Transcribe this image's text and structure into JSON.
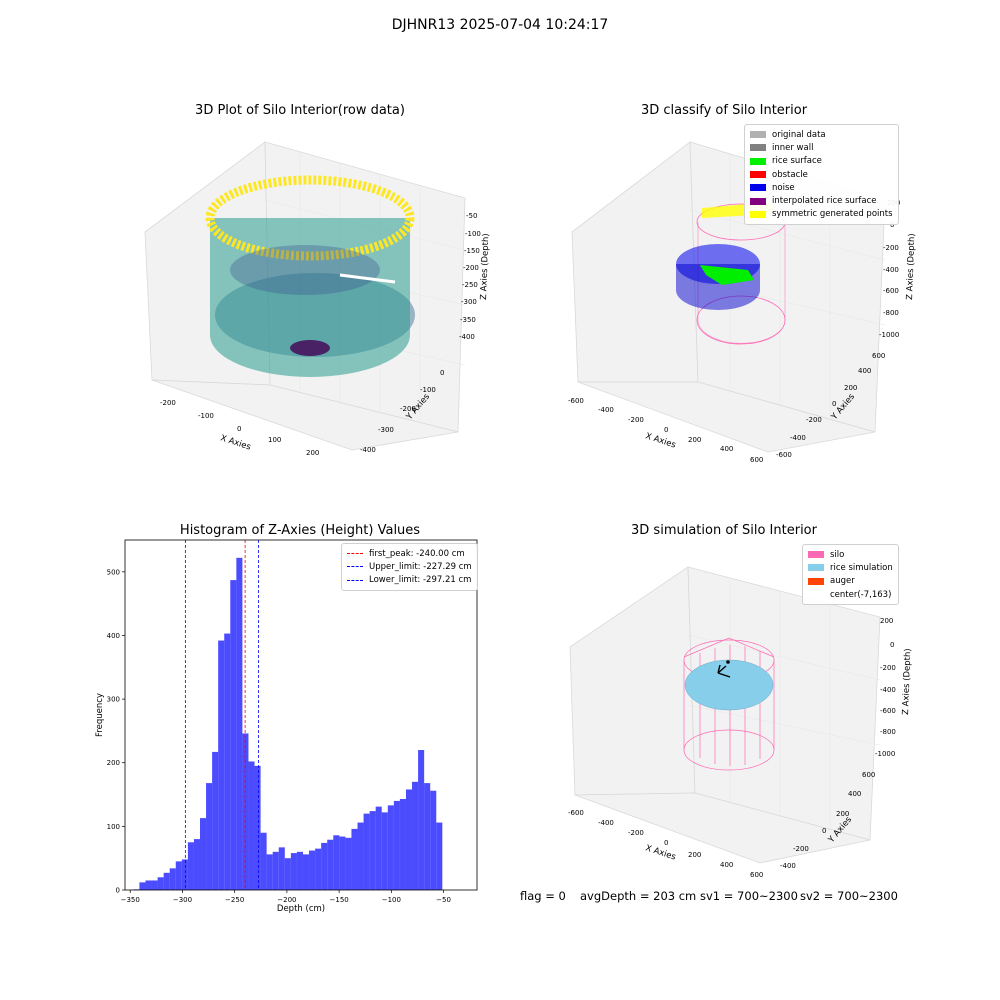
{
  "suptitle": "DJHNR13 2025-07-04 10:24:17",
  "panels": {
    "raw": {
      "title": "3D Plot of Silo Interior(row data)",
      "xlabel": "X Axies",
      "ylabel": "Y Axies",
      "zlabel": "Z Axies (Depth)",
      "xticks": [
        "-200",
        "-100",
        "0",
        "100",
        "200"
      ],
      "yticks": [
        "0",
        "-100",
        "-200",
        "-300",
        "-400"
      ],
      "zticks": [
        "-50",
        "-100",
        "-150",
        "-200",
        "-250",
        "-300",
        "-350",
        "-400"
      ]
    },
    "classify": {
      "title": "3D classify of Silo Interior",
      "xlabel": "X Axies",
      "ylabel": "Y Axies",
      "zlabel": "Z Axies (Depth)",
      "xticks": [
        "-600",
        "-400",
        "-200",
        "0",
        "200",
        "400",
        "600"
      ],
      "yticks": [
        "600",
        "400",
        "200",
        "0",
        "-200",
        "-400",
        "-600"
      ],
      "zticks": [
        "200",
        "0",
        "-200",
        "-400",
        "-600",
        "-800",
        "-1000"
      ],
      "legend": [
        {
          "label": "original data",
          "color": "#b0b0b0"
        },
        {
          "label": "inner wall",
          "color": "#808080"
        },
        {
          "label": "rice surface",
          "color": "#00ee00"
        },
        {
          "label": "obstacle",
          "color": "#ff0000"
        },
        {
          "label": "noise",
          "color": "#0000ee"
        },
        {
          "label": "interpolated rice surface",
          "color": "#800080"
        },
        {
          "label": "symmetric generated points",
          "color": "#ffff00"
        }
      ]
    },
    "simulation": {
      "title": "3D simulation of Silo Interior",
      "xlabel": "X Axies",
      "ylabel": "Y Axies",
      "zlabel": "Z Axies (Depth)",
      "xticks": [
        "-600",
        "-400",
        "-200",
        "0",
        "200",
        "400",
        "600"
      ],
      "yticks": [
        "600",
        "400",
        "200",
        "0",
        "-200",
        "-400"
      ],
      "zticks": [
        "200",
        "0",
        "-200",
        "-400",
        "-600",
        "-800",
        "-1000"
      ],
      "legend": [
        {
          "label": "silo",
          "color": "#ff69b4"
        },
        {
          "label": "rice simulation",
          "color": "#87ceeb"
        },
        {
          "label": "auger",
          "color": "#ff4500"
        },
        {
          "label": "center(-7,163)",
          "color": ""
        }
      ]
    }
  },
  "status": {
    "flag": "flag = 0",
    "avg_depth": "avgDepth = 203 cm",
    "sv1": "sv1 = 700~2300",
    "sv2": "sv2 = 700~2300"
  },
  "chart_data": {
    "type": "bar",
    "title": "Histogram of Z-Axies (Height) Values",
    "xlabel": "Depth (cm)",
    "ylabel": "Frequency",
    "xlim": [
      -355,
      -18
    ],
    "ylim": [
      0,
      550
    ],
    "xticks": [
      -350,
      -300,
      -250,
      -200,
      -150,
      -100,
      -50
    ],
    "yticks": [
      0,
      100,
      200,
      300,
      400,
      500
    ],
    "bin_start": -347,
    "bin_width": 5.8,
    "values": [
      1,
      12,
      15,
      15,
      20,
      27,
      34,
      45,
      48,
      75,
      80,
      113,
      168,
      217,
      392,
      403,
      487,
      522,
      246,
      202,
      195,
      90,
      56,
      60,
      67,
      50,
      58,
      60,
      56,
      62,
      65,
      74,
      79,
      86,
      84,
      82,
      96,
      106,
      120,
      124,
      131,
      122,
      133,
      140,
      143,
      158,
      170,
      220,
      168,
      156,
      106
    ],
    "bar_color": "#0000ff",
    "vlines": [
      {
        "label": "first_peak: -240.00 cm",
        "x": -240.0,
        "color": "#ff0000"
      },
      {
        "label": "Upper_limit: -227.29 cm",
        "x": -227.29,
        "color": "#0000ff"
      },
      {
        "label": "Lower_limit: -297.21 cm",
        "x": -297.21,
        "color": "#0000ff"
      }
    ],
    "legend_position": "top-right"
  }
}
